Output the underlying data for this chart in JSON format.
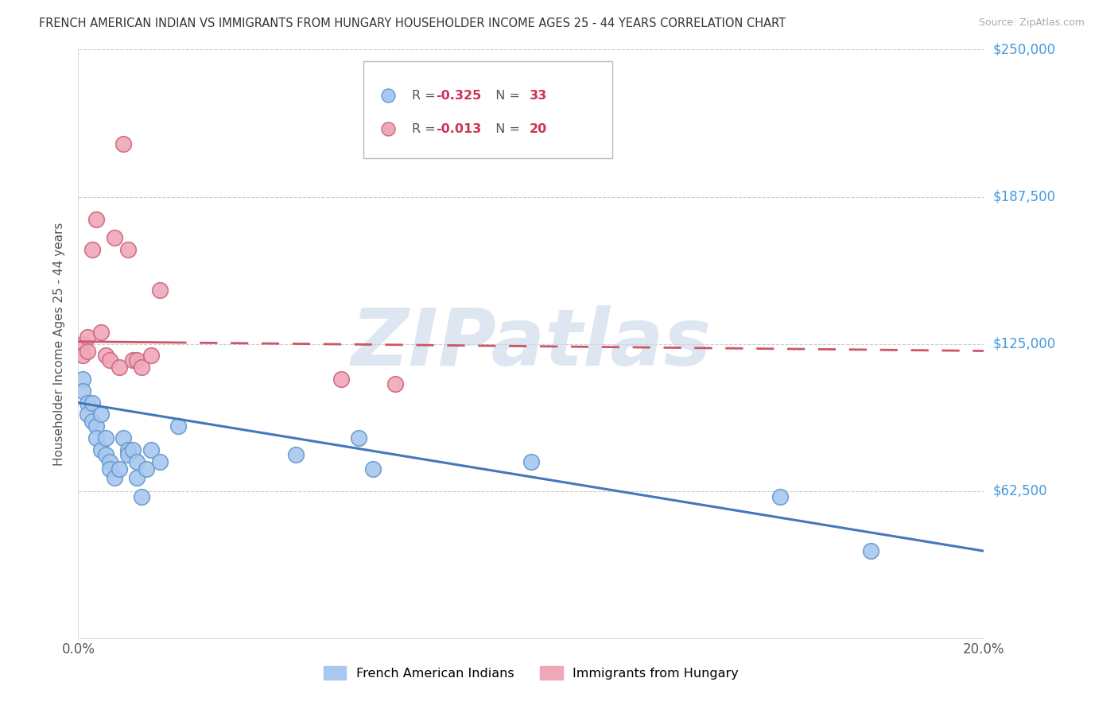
{
  "title": "FRENCH AMERICAN INDIAN VS IMMIGRANTS FROM HUNGARY HOUSEHOLDER INCOME AGES 25 - 44 YEARS CORRELATION CHART",
  "source": "Source: ZipAtlas.com",
  "ylabel": "Householder Income Ages 25 - 44 years",
  "xlim": [
    0.0,
    0.2
  ],
  "ylim": [
    0,
    250000
  ],
  "yticks": [
    0,
    62500,
    125000,
    187500,
    250000
  ],
  "ytick_labels": [
    "",
    "$62,500",
    "$125,000",
    "$187,500",
    "$250,000"
  ],
  "xticks": [
    0.0,
    0.05,
    0.1,
    0.15,
    0.2
  ],
  "xtick_labels": [
    "0.0%",
    "",
    "",
    "",
    "20.0%"
  ],
  "grid_color": "#cccccc",
  "background_color": "#ffffff",
  "series1_name": "French American Indians",
  "series1_color": "#a8c8f0",
  "series1_edge_color": "#6699cc",
  "series2_name": "Immigrants from Hungary",
  "series2_color": "#f0a8b8",
  "series2_edge_color": "#cc6680",
  "line1_color": "#4477bb",
  "line2_color": "#cc5566",
  "watermark": "ZIPatlas",
  "watermark_color": "#c8d8e8",
  "series1_x": [
    0.001,
    0.001,
    0.002,
    0.002,
    0.003,
    0.003,
    0.004,
    0.004,
    0.005,
    0.005,
    0.006,
    0.006,
    0.007,
    0.007,
    0.008,
    0.009,
    0.01,
    0.011,
    0.011,
    0.012,
    0.013,
    0.013,
    0.014,
    0.015,
    0.016,
    0.018,
    0.022,
    0.048,
    0.062,
    0.065,
    0.1,
    0.155,
    0.175
  ],
  "series1_y": [
    110000,
    105000,
    100000,
    95000,
    100000,
    92000,
    90000,
    85000,
    95000,
    80000,
    85000,
    78000,
    75000,
    72000,
    68000,
    72000,
    85000,
    80000,
    78000,
    80000,
    75000,
    68000,
    60000,
    72000,
    80000,
    75000,
    90000,
    78000,
    85000,
    72000,
    75000,
    60000,
    37000
  ],
  "series2_x": [
    0.001,
    0.001,
    0.002,
    0.002,
    0.003,
    0.004,
    0.005,
    0.006,
    0.007,
    0.008,
    0.009,
    0.01,
    0.011,
    0.012,
    0.013,
    0.014,
    0.016,
    0.018,
    0.058,
    0.07
  ],
  "series2_y": [
    125000,
    120000,
    128000,
    122000,
    165000,
    178000,
    130000,
    120000,
    118000,
    170000,
    115000,
    210000,
    165000,
    118000,
    118000,
    115000,
    120000,
    148000,
    110000,
    108000
  ],
  "line1_x0": 0.0,
  "line1_y0": 100000,
  "line1_x1": 0.2,
  "line1_y1": 37000,
  "line2_x0": 0.0,
  "line2_y0": 126000,
  "line2_x1": 0.2,
  "line2_y1": 122000,
  "line2_solid_end": 0.02
}
